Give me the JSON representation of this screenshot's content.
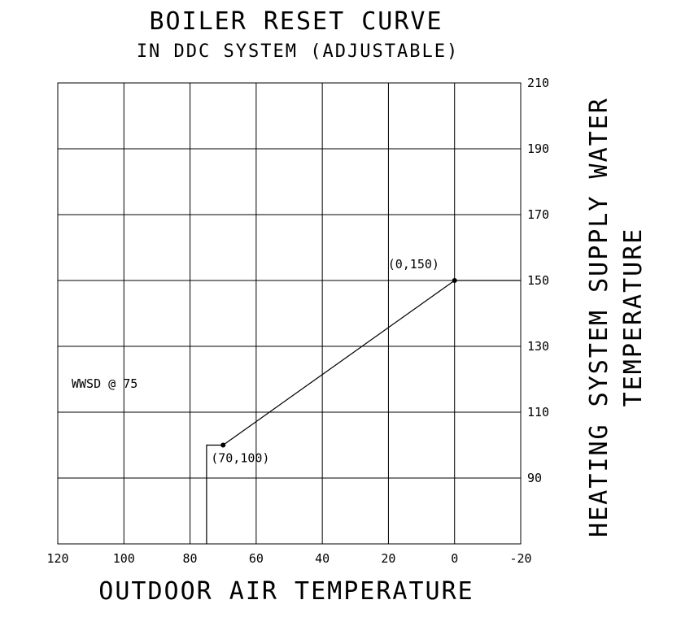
{
  "chart_data": {
    "type": "line",
    "title": "BOILER RESET CURVE",
    "subtitle": "IN DDC SYSTEM (ADJUSTABLE)",
    "xlabel": "OUTDOOR AIR TEMPERATURE",
    "ylabel_lines": [
      "HEATING SYSTEM SUPPLY WATER",
      "TEMPERATURE"
    ],
    "xlim": [
      120,
      -20
    ],
    "ylim": [
      70,
      210
    ],
    "x_ticks": [
      "120",
      "100",
      "80",
      "60",
      "40",
      "20",
      "0",
      "-20"
    ],
    "x_tick_values": [
      120,
      100,
      80,
      60,
      40,
      20,
      0,
      -20
    ],
    "y_ticks": [
      "210",
      "190",
      "170",
      "150",
      "130",
      "110",
      "90"
    ],
    "y_tick_values": [
      210,
      190,
      170,
      150,
      130,
      110,
      90
    ],
    "y_axis_position": "right",
    "grid": true,
    "series": [
      {
        "points": [
          [
            75,
            70
          ],
          [
            75,
            100
          ],
          [
            70,
            100
          ],
          [
            0,
            150
          ],
          [
            -20,
            150
          ]
        ]
      }
    ],
    "markers": [
      [
        70,
        100
      ],
      [
        0,
        150
      ]
    ],
    "annotations": [
      {
        "text": "(0,150)",
        "x": 0,
        "y": 150
      },
      {
        "text": "(70,100)",
        "x": 70,
        "y": 100
      },
      {
        "text": "WWSD @ 75",
        "x": 75,
        "y": 70
      }
    ]
  }
}
